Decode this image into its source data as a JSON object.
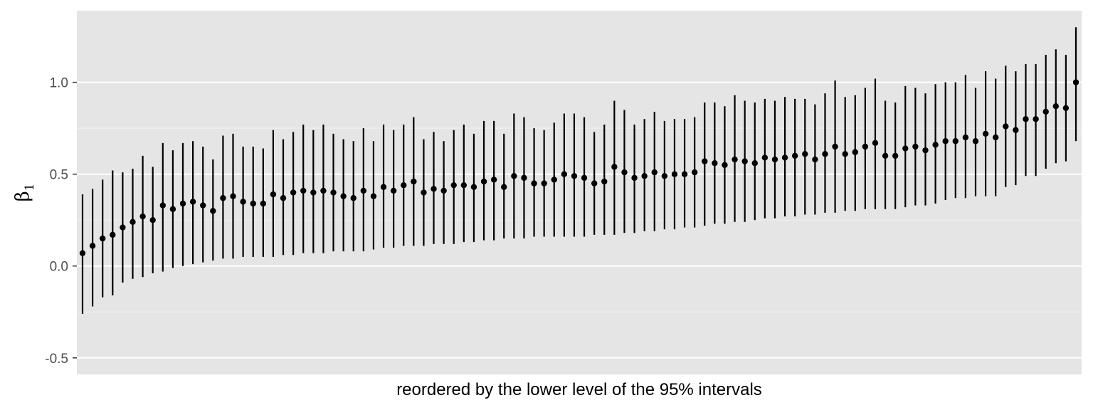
{
  "chart_data": {
    "type": "scatter",
    "title": "",
    "xlabel": "reordered by the lower level of the 95% intervals",
    "ylabel_symbol": "β",
    "ylabel_subscript": "1",
    "ylim": [
      -0.59,
      1.39
    ],
    "y_ticks": [
      -0.5,
      0.0,
      0.5,
      1.0
    ],
    "y_tick_labels": [
      "-0.5",
      "0.0",
      "0.5",
      "1.0"
    ],
    "grid": true,
    "n": 100,
    "estimates": [
      0.07,
      0.11,
      0.15,
      0.17,
      0.21,
      0.24,
      0.27,
      0.25,
      0.33,
      0.31,
      0.34,
      0.35,
      0.33,
      0.3,
      0.37,
      0.38,
      0.35,
      0.34,
      0.34,
      0.39,
      0.37,
      0.4,
      0.41,
      0.4,
      0.41,
      0.4,
      0.38,
      0.37,
      0.41,
      0.38,
      0.43,
      0.41,
      0.44,
      0.46,
      0.4,
      0.42,
      0.41,
      0.44,
      0.44,
      0.43,
      0.46,
      0.47,
      0.43,
      0.49,
      0.48,
      0.45,
      0.45,
      0.47,
      0.5,
      0.49,
      0.48,
      0.45,
      0.46,
      0.54,
      0.51,
      0.48,
      0.49,
      0.51,
      0.49,
      0.5,
      0.5,
      0.51,
      0.57,
      0.56,
      0.55,
      0.58,
      0.57,
      0.56,
      0.59,
      0.58,
      0.59,
      0.6,
      0.61,
      0.58,
      0.61,
      0.65,
      0.61,
      0.62,
      0.65,
      0.67,
      0.6,
      0.6,
      0.64,
      0.65,
      0.63,
      0.66,
      0.68,
      0.68,
      0.7,
      0.68,
      0.72,
      0.7,
      0.76,
      0.74,
      0.8,
      0.8,
      0.84,
      0.87,
      0.86,
      1.0
    ],
    "lower": [
      -0.26,
      -0.22,
      -0.17,
      -0.16,
      -0.09,
      -0.07,
      -0.06,
      -0.04,
      -0.03,
      -0.01,
      0.0,
      0.01,
      0.02,
      0.03,
      0.04,
      0.04,
      0.05,
      0.05,
      0.05,
      0.05,
      0.06,
      0.06,
      0.07,
      0.07,
      0.07,
      0.08,
      0.08,
      0.08,
      0.08,
      0.09,
      0.1,
      0.1,
      0.11,
      0.11,
      0.11,
      0.12,
      0.12,
      0.12,
      0.13,
      0.13,
      0.14,
      0.14,
      0.15,
      0.15,
      0.15,
      0.16,
      0.16,
      0.16,
      0.16,
      0.16,
      0.16,
      0.17,
      0.17,
      0.17,
      0.18,
      0.18,
      0.19,
      0.19,
      0.2,
      0.2,
      0.21,
      0.21,
      0.22,
      0.23,
      0.23,
      0.24,
      0.24,
      0.25,
      0.26,
      0.26,
      0.27,
      0.27,
      0.28,
      0.28,
      0.29,
      0.29,
      0.3,
      0.3,
      0.31,
      0.31,
      0.31,
      0.31,
      0.32,
      0.33,
      0.33,
      0.34,
      0.36,
      0.37,
      0.37,
      0.38,
      0.38,
      0.38,
      0.43,
      0.44,
      0.49,
      0.49,
      0.53,
      0.56,
      0.57,
      0.68
    ],
    "upper": [
      0.39,
      0.42,
      0.47,
      0.52,
      0.51,
      0.53,
      0.6,
      0.54,
      0.67,
      0.63,
      0.67,
      0.68,
      0.65,
      0.58,
      0.71,
      0.72,
      0.65,
      0.65,
      0.64,
      0.74,
      0.69,
      0.73,
      0.77,
      0.74,
      0.77,
      0.72,
      0.69,
      0.68,
      0.75,
      0.68,
      0.77,
      0.74,
      0.77,
      0.81,
      0.69,
      0.73,
      0.68,
      0.74,
      0.77,
      0.72,
      0.79,
      0.79,
      0.72,
      0.83,
      0.81,
      0.75,
      0.74,
      0.78,
      0.83,
      0.83,
      0.81,
      0.73,
      0.77,
      0.9,
      0.85,
      0.77,
      0.8,
      0.84,
      0.79,
      0.8,
      0.8,
      0.81,
      0.89,
      0.89,
      0.87,
      0.93,
      0.9,
      0.89,
      0.91,
      0.9,
      0.92,
      0.91,
      0.91,
      0.88,
      0.94,
      1.01,
      0.92,
      0.93,
      0.97,
      1.02,
      0.9,
      0.89,
      0.98,
      0.97,
      0.94,
      0.99,
      1.0,
      1.0,
      1.04,
      0.97,
      1.06,
      1.02,
      1.09,
      1.06,
      1.1,
      1.1,
      1.15,
      1.18,
      1.15,
      1.3
    ]
  }
}
